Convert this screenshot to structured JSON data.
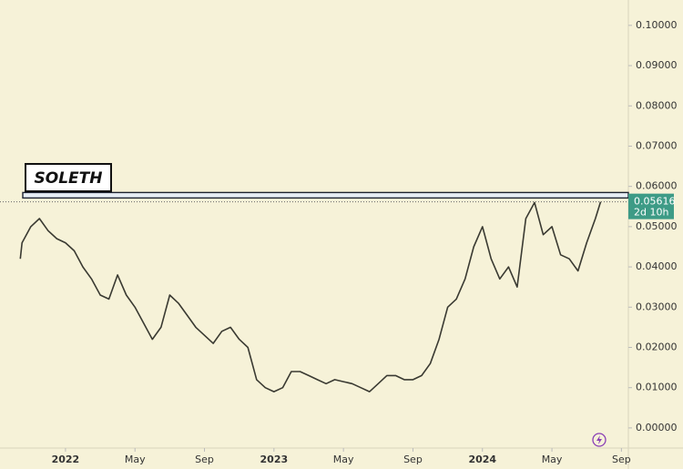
{
  "chart_data": {
    "type": "line",
    "annotation": "SOLETH",
    "last_value_label": "0.05616",
    "countdown": "2d 10h",
    "resistance_level": 0.0578,
    "color": "#3a3a32",
    "x": [
      -2.6,
      -2.5,
      -2,
      -1.5,
      -1,
      -0.5,
      0,
      0.5,
      1,
      1.5,
      2,
      2.5,
      3,
      3.5,
      4,
      4.5,
      5,
      5.5,
      6,
      6.5,
      7,
      7.5,
      8,
      8.5,
      9,
      9.5,
      10,
      10.5,
      11,
      11.5,
      12,
      12.5,
      13,
      13.5,
      14,
      14.5,
      15,
      15.5,
      16,
      16.5,
      17,
      17.5,
      18,
      18.5,
      19,
      19.5,
      20,
      20.5,
      21,
      21.5,
      22,
      22.5,
      23,
      23.5,
      24,
      24.5,
      25,
      25.5,
      26,
      26.5,
      27,
      27.5,
      28,
      28.5,
      29,
      29.5,
      30,
      30.5,
      30.8
    ],
    "values": [
      0.042,
      0.046,
      0.05,
      0.052,
      0.049,
      0.047,
      0.046,
      0.044,
      0.04,
      0.037,
      0.033,
      0.032,
      0.038,
      0.033,
      0.03,
      0.026,
      0.022,
      0.025,
      0.033,
      0.031,
      0.028,
      0.025,
      0.023,
      0.021,
      0.024,
      0.025,
      0.022,
      0.02,
      0.012,
      0.01,
      0.009,
      0.01,
      0.014,
      0.014,
      0.013,
      0.012,
      0.011,
      0.012,
      0.0115,
      0.011,
      0.01,
      0.009,
      0.011,
      0.013,
      0.013,
      0.012,
      0.012,
      0.013,
      0.016,
      0.022,
      0.03,
      0.032,
      0.037,
      0.045,
      0.05,
      0.042,
      0.037,
      0.04,
      0.035,
      0.052,
      0.056,
      0.048,
      0.05,
      0.043,
      0.042,
      0.039,
      0.046,
      0.052,
      0.05616
    ],
    "xlim": [
      -3.77,
      32.4
    ],
    "xticks": [
      {
        "value": 0,
        "label": "2022"
      },
      {
        "value": 4,
        "label": "May"
      },
      {
        "value": 8,
        "label": "Sep"
      },
      {
        "value": 12,
        "label": "2023"
      },
      {
        "value": 16,
        "label": "May"
      },
      {
        "value": 20,
        "label": "Sep"
      },
      {
        "value": 24,
        "label": "2024"
      },
      {
        "value": 28,
        "label": "May"
      },
      {
        "value": 32,
        "label": "Sep"
      }
    ],
    "ylim": [
      -0.005,
      0.1063
    ],
    "yticks": [
      {
        "value": 0,
        "label": "0.00000"
      },
      {
        "value": 0.01,
        "label": "0.01000"
      },
      {
        "value": 0.02,
        "label": "0.02000"
      },
      {
        "value": 0.03,
        "label": "0.03000"
      },
      {
        "value": 0.04,
        "label": "0.04000"
      },
      {
        "value": 0.05,
        "label": "0.05000"
      },
      {
        "value": 0.06,
        "label": "0.06000"
      },
      {
        "value": 0.07,
        "label": "0.07000"
      },
      {
        "value": 0.08,
        "label": "0.08000"
      },
      {
        "value": 0.09,
        "label": "0.09000"
      },
      {
        "value": 0.1,
        "label": "0.10000"
      }
    ]
  }
}
